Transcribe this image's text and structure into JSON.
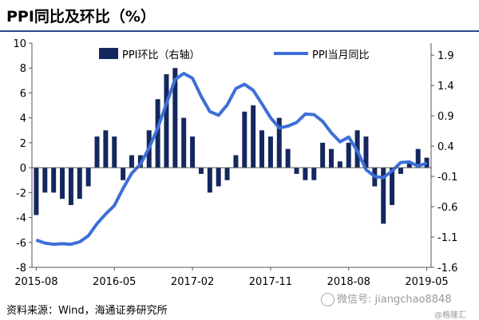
{
  "title": "PPI同比及环比（%）",
  "source": "资料来源：Wind，海通证券研究所",
  "watermark": "微信号: jiangchao8848",
  "watermark2": "@格隆汇",
  "colors": {
    "bar": "#14275e",
    "line": "#3d6fd8",
    "axis": "#555555",
    "title_rule": "#2a4a8a"
  },
  "chart_data": {
    "type": "bar+line",
    "x_tick_labels": [
      "2015-08",
      "2016-05",
      "2017-02",
      "2017-11",
      "2018-08",
      "2019-05"
    ],
    "x": [
      "2015-08",
      "2015-09",
      "2015-10",
      "2015-11",
      "2015-12",
      "2016-01",
      "2016-02",
      "2016-03",
      "2016-04",
      "2016-05",
      "2016-06",
      "2016-07",
      "2016-08",
      "2016-09",
      "2016-10",
      "2016-11",
      "2016-12",
      "2017-01",
      "2017-02",
      "2017-03",
      "2017-04",
      "2017-05",
      "2017-06",
      "2017-07",
      "2017-08",
      "2017-09",
      "2017-10",
      "2017-11",
      "2017-12",
      "2018-01",
      "2018-02",
      "2018-03",
      "2018-04",
      "2018-05",
      "2018-06",
      "2018-07",
      "2018-08",
      "2018-09",
      "2018-10",
      "2018-11",
      "2018-12",
      "2019-01",
      "2019-02",
      "2019-03",
      "2019-04",
      "2019-05"
    ],
    "series": [
      {
        "name": "PPI环比（右轴）",
        "type": "bar",
        "axis": "left",
        "values": [
          -3.8,
          -2,
          -2,
          -2.5,
          -3,
          -2.5,
          -1.5,
          2.5,
          3,
          2.5,
          -1,
          1,
          1,
          3,
          5.5,
          7.5,
          8,
          4,
          2.5,
          -0.5,
          -2,
          -1.5,
          -1,
          1,
          4.5,
          5,
          3,
          2.5,
          4,
          1.5,
          -0.5,
          -1,
          -1,
          2,
          1.5,
          0.5,
          2,
          3,
          2.5,
          -1.5,
          -4.5,
          -3,
          -0.5,
          0.5,
          1.5,
          0.8
        ]
      },
      {
        "name": "PPI当月同比",
        "type": "line",
        "axis": "right",
        "values": [
          -1.15,
          -1.2,
          -1.22,
          -1.21,
          -1.22,
          -1.18,
          -1.08,
          -0.88,
          -0.72,
          -0.58,
          -0.3,
          -0.05,
          0.1,
          0.37,
          0.7,
          1.1,
          1.5,
          1.6,
          1.52,
          1.22,
          0.97,
          0.91,
          1.08,
          1.35,
          1.42,
          1.32,
          1.1,
          0.87,
          0.7,
          0.73,
          0.79,
          0.93,
          0.92,
          0.81,
          0.62,
          0.47,
          0.55,
          0.32,
          0.01,
          -0.1,
          -0.12,
          -0.01,
          0.13,
          0.14,
          0.07,
          0.12
        ]
      }
    ],
    "y_left": {
      "min": -8,
      "max": 10,
      "ticks": [
        10,
        8,
        6,
        4,
        2,
        0,
        -2,
        -4,
        -6,
        -8
      ]
    },
    "y_right": {
      "min": -1.6,
      "max": 2.1,
      "ticks": [
        "1.9",
        "1.4",
        "0.9",
        "0.4",
        "-0.1",
        "-0.6",
        "-1.1",
        "-1.6"
      ]
    },
    "legend_position": "top-center"
  }
}
